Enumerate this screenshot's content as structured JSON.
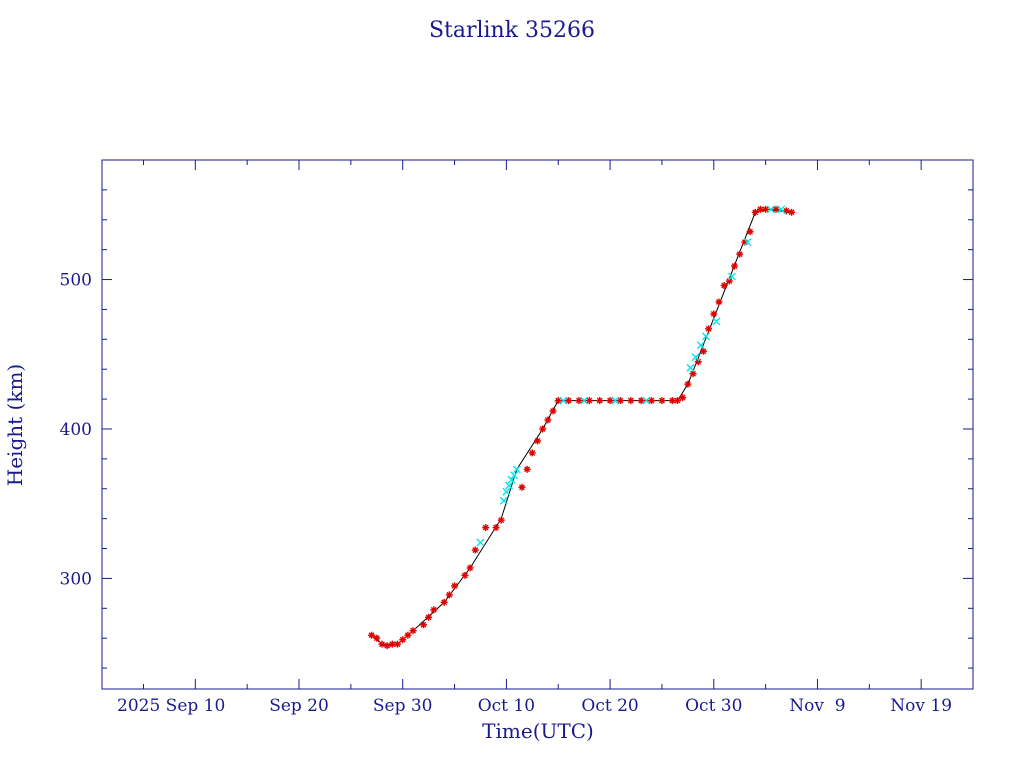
{
  "chart_data": {
    "type": "scatter",
    "title": "Starlink 35266",
    "xlabel": "Time(UTC)",
    "ylabel": "Height (km)",
    "x_unit": "days",
    "xlim": [
      "2025-09-01",
      "2025-11-24"
    ],
    "ylim": [
      226,
      580
    ],
    "x_ticks": [
      {
        "date": "2025-09-10",
        "label": "2025 Sep 10"
      },
      {
        "date": "2025-09-20",
        "label": "Sep 20"
      },
      {
        "date": "2025-09-30",
        "label": "Sep 30"
      },
      {
        "date": "2025-10-10",
        "label": "Oct 10"
      },
      {
        "date": "2025-10-20",
        "label": "Oct 20"
      },
      {
        "date": "2025-10-30",
        "label": "Oct 30"
      },
      {
        "date": "2025-11-09",
        "label": "Nov  9"
      },
      {
        "date": "2025-11-19",
        "label": "Nov 19"
      }
    ],
    "y_ticks": [
      300,
      400,
      500
    ],
    "grid": false,
    "colors": {
      "axis": "#1a1a8c",
      "line": "#000000",
      "primary": "#e00000",
      "secondary": "#00e5ee"
    },
    "series": [
      {
        "marker": "star",
        "color": "#e00000",
        "x": [
          "2025-09-27T00:00",
          "2025-09-27T12:00",
          "2025-09-28T00:00",
          "2025-09-28T12:00",
          "2025-09-29T00:00",
          "2025-09-29T12:00",
          "2025-09-30T00:00",
          "2025-09-30T12:00",
          "2025-10-01T00:00",
          "2025-10-02T00:00",
          "2025-10-02T12:00",
          "2025-10-03T00:00",
          "2025-10-04T00:00",
          "2025-10-04T12:00",
          "2025-10-05T00:00",
          "2025-10-06T00:00",
          "2025-10-06T12:00",
          "2025-10-07T00:00",
          "2025-10-08T00:00",
          "2025-10-09T00:00",
          "2025-10-09T12:00",
          "2025-10-11T12:00",
          "2025-10-12T00:00",
          "2025-10-12T12:00",
          "2025-10-13T00:00",
          "2025-10-13T12:00",
          "2025-10-14T00:00",
          "2025-10-14T12:00",
          "2025-10-15T00:00",
          "2025-10-16T00:00",
          "2025-10-17T00:00",
          "2025-10-18T00:00",
          "2025-10-19T00:00",
          "2025-10-20T00:00",
          "2025-10-21T00:00",
          "2025-10-22T00:00",
          "2025-10-23T00:00",
          "2025-10-24T00:00",
          "2025-10-25T00:00",
          "2025-10-26T00:00",
          "2025-10-26T12:00",
          "2025-10-27T00:00",
          "2025-10-27T12:00",
          "2025-10-28T00:00",
          "2025-10-28T12:00",
          "2025-10-29T00:00",
          "2025-10-29T12:00",
          "2025-10-30T00:00",
          "2025-10-30T12:00",
          "2025-10-31T00:00",
          "2025-10-31T12:00",
          "2025-11-01T00:00",
          "2025-11-01T12:00",
          "2025-11-02T00:00",
          "2025-11-02T12:00",
          "2025-11-03T00:00",
          "2025-11-03T12:00",
          "2025-11-04T00:00",
          "2025-11-05T00:00",
          "2025-11-06T00:00",
          "2025-11-06T12:00"
        ],
        "y": [
          262,
          260,
          256,
          255,
          256,
          256,
          259,
          262,
          265,
          269,
          274,
          279,
          284,
          289,
          295,
          302,
          307,
          319,
          334,
          334,
          339,
          361,
          373,
          384,
          392,
          400,
          406,
          412,
          419,
          419,
          419,
          419,
          419,
          419,
          419,
          419,
          419,
          419,
          419,
          419,
          419,
          421,
          430,
          437,
          445,
          452,
          467,
          477,
          485,
          496,
          499,
          509,
          517,
          525,
          532,
          545,
          547,
          547,
          547,
          546,
          545
        ]
      },
      {
        "marker": "cross",
        "color": "#00e5ee",
        "x": [
          "2025-10-07T12:00",
          "2025-10-09T18:00",
          "2025-10-10T00:00",
          "2025-10-10T06:00",
          "2025-10-10T12:00",
          "2025-10-10T18:00",
          "2025-10-11T00:00",
          "2025-10-15T12:00",
          "2025-10-17T12:00",
          "2025-10-20T12:00",
          "2025-10-23T12:00",
          "2025-10-27T18:00",
          "2025-10-28T06:00",
          "2025-10-28T18:00",
          "2025-10-29T06:00",
          "2025-10-30T06:00",
          "2025-10-31T18:00",
          "2025-11-02T06:00",
          "2025-11-04T12:00",
          "2025-11-05T12:00"
        ],
        "y": [
          324,
          352,
          358,
          362,
          366,
          369,
          373,
          419,
          419,
          419,
          419,
          441,
          448,
          456,
          462,
          472,
          502,
          525,
          547,
          547
        ]
      }
    ],
    "line_path": {
      "color": "#000000",
      "x": [
        "2025-09-27T00:00",
        "2025-09-28T00:00",
        "2025-09-28T12:00",
        "2025-09-29T12:00",
        "2025-09-30T12:00",
        "2025-10-01T00:00",
        "2025-10-04T00:00",
        "2025-10-06T12:00",
        "2025-10-09T12:00",
        "2025-10-11T00:00",
        "2025-10-13T12:00",
        "2025-10-15T00:00",
        "2025-10-26T12:00",
        "2025-10-27T12:00",
        "2025-11-03T00:00",
        "2025-11-04T00:00",
        "2025-11-06T12:00"
      ],
      "y": [
        262,
        256,
        255,
        256,
        262,
        265,
        284,
        307,
        340,
        373,
        400,
        419,
        419,
        430,
        545,
        547,
        545
      ]
    }
  }
}
